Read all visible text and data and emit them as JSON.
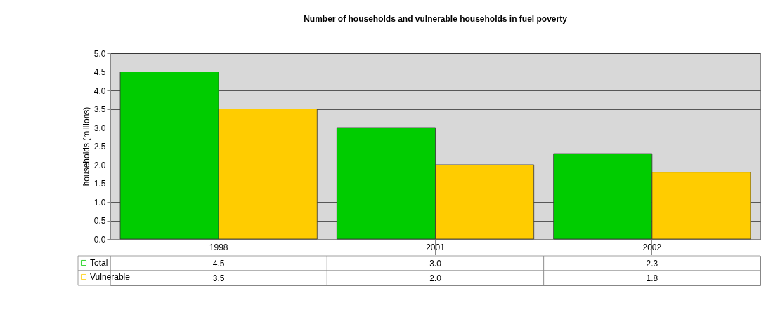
{
  "chart_data": {
    "type": "bar",
    "title": "Number of households and vulnerable households in fuel poverty",
    "ylabel": "households (millions)",
    "categories": [
      "1998",
      "2001",
      "2002"
    ],
    "series": [
      {
        "name": "Total",
        "color": "#00cc00",
        "values": [
          4.5,
          3.0,
          2.3
        ],
        "value_labels": [
          "4.5",
          "3.0",
          "2.3"
        ]
      },
      {
        "name": "Vulnerable",
        "color": "#ffcc00",
        "values": [
          3.5,
          2.0,
          1.8
        ],
        "value_labels": [
          "3.5",
          "2.0",
          "1.8"
        ]
      }
    ],
    "ylim": [
      0,
      5
    ],
    "yticks": [
      {
        "value": 0,
        "label": "0.0"
      },
      {
        "value": 0.5,
        "label": "0.5"
      },
      {
        "value": 1,
        "label": "1.0"
      },
      {
        "value": 1.5,
        "label": "1.5"
      },
      {
        "value": 2,
        "label": "2.0"
      },
      {
        "value": 2.5,
        "label": "2.5"
      },
      {
        "value": 3,
        "label": "3.0"
      },
      {
        "value": 3.5,
        "label": "3.5"
      },
      {
        "value": 4,
        "label": "4.0"
      },
      {
        "value": 4.5,
        "label": "4.5"
      },
      {
        "value": 5,
        "label": "5.0"
      }
    ],
    "grid": "y",
    "legend": "bottom"
  }
}
